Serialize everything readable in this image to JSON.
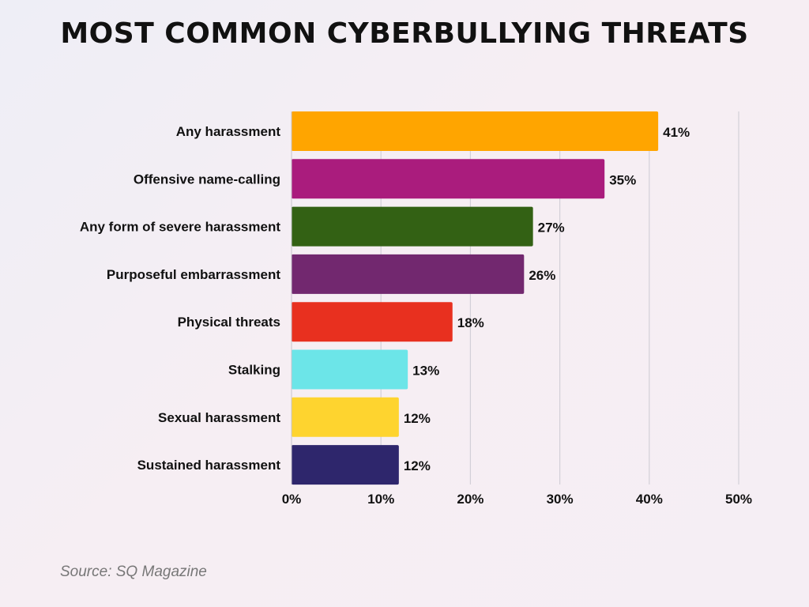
{
  "chart_data": {
    "type": "bar",
    "orientation": "horizontal",
    "title": "MOST COMMON CYBERBULLYING THREATS",
    "categories": [
      "Any harassment",
      "Offensive name-calling",
      "Any form of severe harassment",
      "Purposeful embarrassment",
      "Physical threats",
      "Stalking",
      "Sexual harassment",
      "Sustained harassment"
    ],
    "values": [
      41,
      35,
      27,
      26,
      18,
      13,
      12,
      12
    ],
    "value_labels": [
      "41%",
      "35%",
      "27%",
      "26%",
      "18%",
      "13%",
      "12%",
      "12%"
    ],
    "colors": [
      "#FFA500",
      "#AA1C7D",
      "#336114",
      "#72286F",
      "#E8301F",
      "#6CE5E8",
      "#FED42F",
      "#2E266C"
    ],
    "xlim": [
      0,
      50
    ],
    "xticks": [
      0,
      10,
      20,
      30,
      40,
      50
    ],
    "xtick_labels": [
      "0%",
      "10%",
      "20%",
      "30%",
      "40%",
      "50%"
    ],
    "xlabel": "",
    "ylabel": "",
    "grid": true
  },
  "source": "Source: SQ Magazine"
}
